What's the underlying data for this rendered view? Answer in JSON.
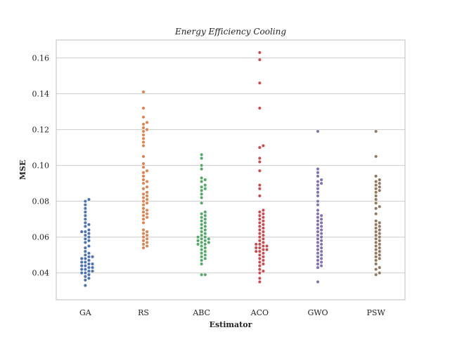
{
  "chart_data": {
    "type": "scatter",
    "subtype": "swarm",
    "title": "Energy Efficiency Cooling",
    "xlabel": "Estimator",
    "ylabel": "MSE",
    "ylim": [
      0.025,
      0.17
    ],
    "yticks": [
      "0.04",
      "0.06",
      "0.08",
      "0.10",
      "0.12",
      "0.14",
      "0.16"
    ],
    "grid": true,
    "categories": [
      "GA",
      "RS",
      "ABC",
      "ACO",
      "GWO",
      "PSW"
    ],
    "colors": [
      "#4c72b0",
      "#dd8452",
      "#55a868",
      "#c44e52",
      "#8172b3",
      "#937860"
    ],
    "series": [
      {
        "name": "GA",
        "values": [
          0.033,
          0.036,
          0.037,
          0.038,
          0.039,
          0.04,
          0.04,
          0.041,
          0.041,
          0.042,
          0.042,
          0.043,
          0.043,
          0.044,
          0.044,
          0.045,
          0.045,
          0.046,
          0.046,
          0.047,
          0.048,
          0.048,
          0.049,
          0.049,
          0.05,
          0.051,
          0.052,
          0.054,
          0.055,
          0.057,
          0.058,
          0.059,
          0.06,
          0.061,
          0.062,
          0.063,
          0.063,
          0.064,
          0.066,
          0.067,
          0.068,
          0.07,
          0.072,
          0.074,
          0.076,
          0.078,
          0.08,
          0.081
        ]
      },
      {
        "name": "RS",
        "values": [
          0.054,
          0.055,
          0.056,
          0.057,
          0.058,
          0.059,
          0.06,
          0.061,
          0.062,
          0.063,
          0.064,
          0.068,
          0.07,
          0.071,
          0.072,
          0.073,
          0.074,
          0.075,
          0.076,
          0.078,
          0.079,
          0.08,
          0.081,
          0.082,
          0.083,
          0.084,
          0.085,
          0.087,
          0.088,
          0.09,
          0.091,
          0.092,
          0.094,
          0.096,
          0.097,
          0.099,
          0.101,
          0.105,
          0.111,
          0.113,
          0.115,
          0.117,
          0.119,
          0.12,
          0.121,
          0.123,
          0.124,
          0.127,
          0.132,
          0.141
        ]
      },
      {
        "name": "ABC",
        "values": [
          0.039,
          0.039,
          0.045,
          0.047,
          0.048,
          0.049,
          0.05,
          0.051,
          0.052,
          0.053,
          0.054,
          0.055,
          0.056,
          0.056,
          0.057,
          0.057,
          0.058,
          0.058,
          0.059,
          0.059,
          0.06,
          0.06,
          0.061,
          0.062,
          0.063,
          0.064,
          0.065,
          0.066,
          0.067,
          0.068,
          0.069,
          0.07,
          0.071,
          0.072,
          0.073,
          0.074,
          0.079,
          0.082,
          0.084,
          0.086,
          0.087,
          0.088,
          0.089,
          0.091,
          0.092,
          0.093,
          0.098,
          0.1,
          0.104,
          0.106
        ]
      },
      {
        "name": "ACO",
        "values": [
          0.035,
          0.037,
          0.04,
          0.041,
          0.042,
          0.044,
          0.045,
          0.046,
          0.047,
          0.048,
          0.049,
          0.05,
          0.051,
          0.052,
          0.052,
          0.053,
          0.053,
          0.054,
          0.054,
          0.055,
          0.055,
          0.056,
          0.056,
          0.057,
          0.058,
          0.059,
          0.06,
          0.061,
          0.062,
          0.063,
          0.064,
          0.065,
          0.066,
          0.067,
          0.068,
          0.069,
          0.07,
          0.071,
          0.072,
          0.073,
          0.074,
          0.075,
          0.083,
          0.087,
          0.089,
          0.097,
          0.102,
          0.104,
          0.11,
          0.111,
          0.132,
          0.146,
          0.159,
          0.163
        ]
      },
      {
        "name": "GWO",
        "values": [
          0.035,
          0.043,
          0.044,
          0.045,
          0.046,
          0.047,
          0.048,
          0.049,
          0.05,
          0.051,
          0.052,
          0.053,
          0.054,
          0.055,
          0.056,
          0.057,
          0.058,
          0.059,
          0.06,
          0.061,
          0.062,
          0.063,
          0.064,
          0.065,
          0.066,
          0.067,
          0.068,
          0.069,
          0.07,
          0.071,
          0.072,
          0.073,
          0.075,
          0.078,
          0.08,
          0.083,
          0.085,
          0.087,
          0.089,
          0.09,
          0.091,
          0.092,
          0.094,
          0.096,
          0.098,
          0.119
        ]
      },
      {
        "name": "PSW",
        "values": [
          0.039,
          0.04,
          0.042,
          0.043,
          0.045,
          0.047,
          0.048,
          0.049,
          0.05,
          0.051,
          0.052,
          0.053,
          0.054,
          0.055,
          0.056,
          0.057,
          0.058,
          0.059,
          0.06,
          0.061,
          0.062,
          0.063,
          0.064,
          0.065,
          0.066,
          0.067,
          0.068,
          0.069,
          0.073,
          0.076,
          0.077,
          0.079,
          0.081,
          0.083,
          0.085,
          0.086,
          0.087,
          0.088,
          0.089,
          0.09,
          0.091,
          0.092,
          0.094,
          0.105,
          0.119
        ]
      }
    ]
  }
}
